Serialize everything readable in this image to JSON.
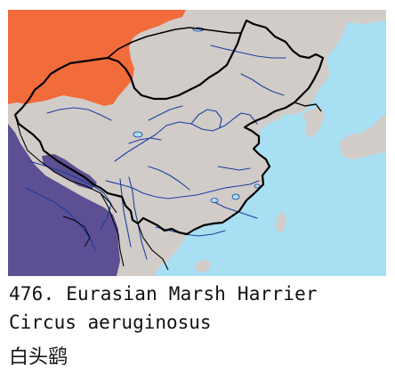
{
  "caption": {
    "number_line": "476. Eurasian Marsh Harrier",
    "scientific_name": "Circus aeruginosus",
    "chinese_name": "白头鹞"
  },
  "map": {
    "colors": {
      "sea": "#a9dff3",
      "land": "#d2ccc9",
      "breeding_range": "#f26b3a",
      "wintering_range": "#5c4f93",
      "border": "#000000",
      "river": "#1b3f9e"
    },
    "legend_semantics": {
      "orange": "breeding range",
      "purple": "wintering range"
    }
  }
}
